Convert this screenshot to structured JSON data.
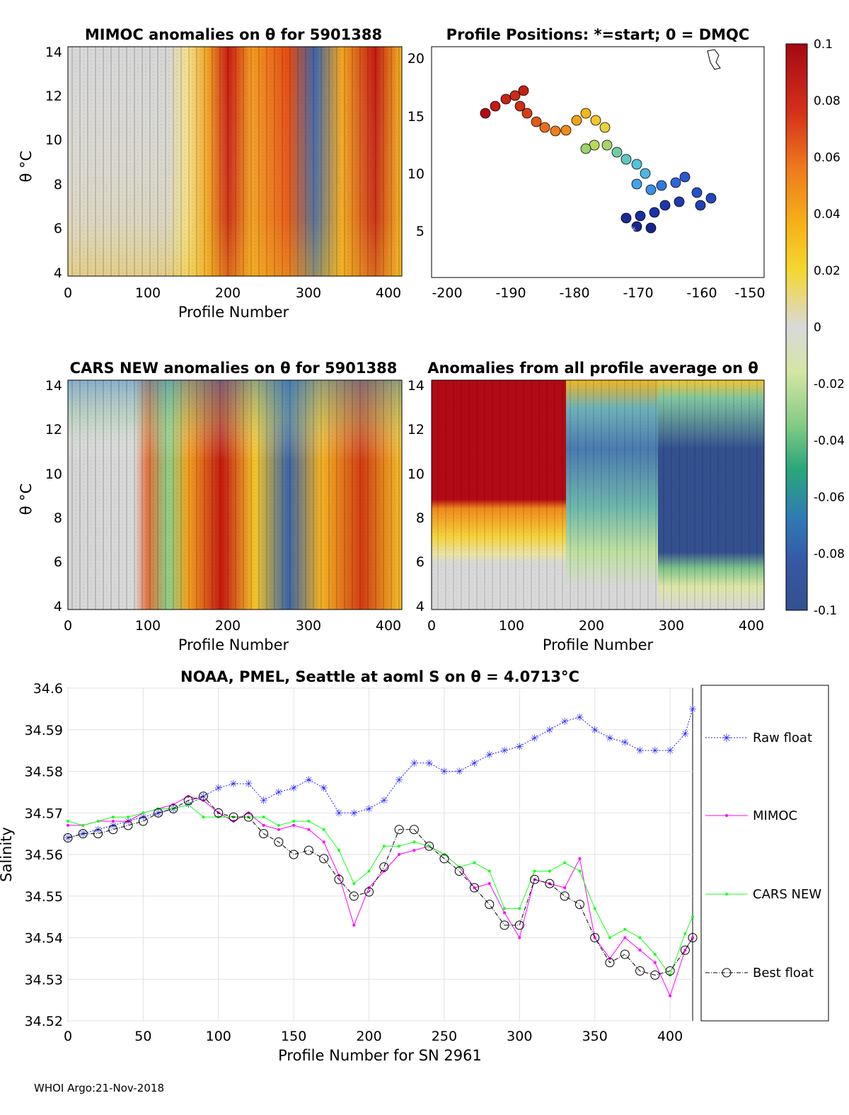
{
  "colors": {
    "blue": "#1f1fff",
    "magenta": "#ff00ff",
    "green": "#1aff1a",
    "black": "#000000",
    "red": "#b30a14",
    "dkblue": "#34508f"
  },
  "colorbar": {
    "ticks": [
      "0.1",
      "0.08",
      "0.06",
      "0.04",
      "0.02",
      "0",
      "-0.02",
      "-0.04",
      "-0.06",
      "-0.08",
      "-0.1"
    ]
  },
  "panel_mimoc": {
    "title": "MIMOC anomalies on θ  for 5901388",
    "ylabel": "θ °C",
    "xlabel": "Profile Number",
    "yticks": [
      "14",
      "12",
      "10",
      "8",
      "6",
      "4"
    ],
    "xticks": [
      "0",
      "100",
      "200",
      "300",
      "400"
    ]
  },
  "panel_positions": {
    "title": "Profile Positions: *=start; 0 = DMQC",
    "yticks": [
      "20",
      "15",
      "10",
      "5"
    ],
    "xticks": [
      "-200",
      "-190",
      "-180",
      "-170",
      "-160",
      "-150"
    ]
  },
  "panel_cars": {
    "title": "CARS NEW anomalies on θ for 5901388",
    "ylabel": "θ °C",
    "xlabel": "Profile Number",
    "yticks": [
      "14",
      "12",
      "10",
      "8",
      "6",
      "4"
    ],
    "xticks": [
      "0",
      "100",
      "200",
      "300",
      "400"
    ]
  },
  "panel_avg": {
    "title": "Anomalies from all profile average on θ",
    "xlabel": "Profile Number",
    "yticks": [
      "14",
      "12",
      "10",
      "8",
      "6",
      "4"
    ],
    "xticks": [
      "0",
      "100",
      "200",
      "300",
      "400"
    ]
  },
  "chart_data": {
    "type": "line",
    "title": "NOAA, PMEL, Seattle at aoml S on θ = 4.0713°C",
    "xlabel": "Profile Number for SN 2961",
    "ylabel": "Salinity",
    "xlim": [
      0,
      415
    ],
    "ylim": [
      34.52,
      34.6
    ],
    "xticks": [
      "0",
      "50",
      "100",
      "150",
      "200",
      "250",
      "300",
      "350",
      "400"
    ],
    "yticks": [
      "34.6",
      "34.59",
      "34.58",
      "34.57",
      "34.56",
      "34.55",
      "34.54",
      "34.53",
      "34.52"
    ],
    "x": [
      0,
      10,
      20,
      30,
      40,
      50,
      60,
      70,
      80,
      90,
      100,
      110,
      120,
      130,
      140,
      150,
      160,
      170,
      180,
      190,
      200,
      210,
      220,
      230,
      240,
      250,
      260,
      270,
      280,
      290,
      300,
      310,
      320,
      330,
      340,
      350,
      360,
      370,
      380,
      390,
      400,
      410,
      415
    ],
    "series": [
      {
        "name": "Raw float",
        "values": [
          34.564,
          34.565,
          34.566,
          34.567,
          34.568,
          34.569,
          34.57,
          34.571,
          34.572,
          34.574,
          34.576,
          34.577,
          34.577,
          34.573,
          34.575,
          34.576,
          34.578,
          34.576,
          34.57,
          34.57,
          34.571,
          34.573,
          34.578,
          34.582,
          34.582,
          34.58,
          34.58,
          34.582,
          34.584,
          34.585,
          34.586,
          34.588,
          34.59,
          34.592,
          34.593,
          34.59,
          34.588,
          34.587,
          34.585,
          34.585,
          34.585,
          34.589,
          34.595
        ]
      },
      {
        "name": "MIMOC",
        "values": [
          34.567,
          34.567,
          34.568,
          34.568,
          34.568,
          34.57,
          34.571,
          34.572,
          34.574,
          34.573,
          34.57,
          34.568,
          34.57,
          34.567,
          34.566,
          34.567,
          34.566,
          34.563,
          34.555,
          34.543,
          34.552,
          34.556,
          34.56,
          34.561,
          34.562,
          34.56,
          34.557,
          34.552,
          34.553,
          34.546,
          34.54,
          34.554,
          34.553,
          34.552,
          34.559,
          34.54,
          34.535,
          34.54,
          34.537,
          34.534,
          34.526,
          34.537,
          34.54
        ]
      },
      {
        "name": "CARS NEW",
        "values": [
          34.568,
          34.567,
          34.568,
          34.569,
          34.569,
          34.57,
          34.571,
          34.571,
          34.572,
          34.569,
          34.569,
          34.569,
          34.569,
          34.569,
          34.567,
          34.568,
          34.568,
          34.566,
          34.561,
          34.553,
          34.556,
          34.562,
          34.562,
          34.563,
          34.562,
          34.56,
          34.557,
          34.558,
          34.556,
          34.547,
          34.547,
          34.556,
          34.556,
          34.558,
          34.556,
          34.547,
          34.54,
          34.542,
          34.54,
          34.536,
          34.531,
          34.541,
          34.545
        ]
      },
      {
        "name": "Best float",
        "values": [
          34.564,
          34.565,
          34.565,
          34.566,
          34.567,
          34.568,
          34.57,
          34.571,
          34.573,
          34.574,
          34.57,
          34.569,
          34.569,
          34.565,
          34.563,
          34.56,
          34.561,
          34.559,
          34.554,
          34.55,
          34.551,
          34.557,
          34.566,
          34.566,
          34.562,
          34.559,
          34.556,
          34.552,
          34.548,
          34.543,
          34.543,
          34.554,
          34.553,
          34.55,
          34.548,
          34.54,
          34.534,
          34.536,
          34.532,
          34.531,
          34.532,
          34.537,
          34.54
        ]
      }
    ],
    "legend": "right"
  },
  "footer": "WHOI Argo:21-Nov-2018"
}
